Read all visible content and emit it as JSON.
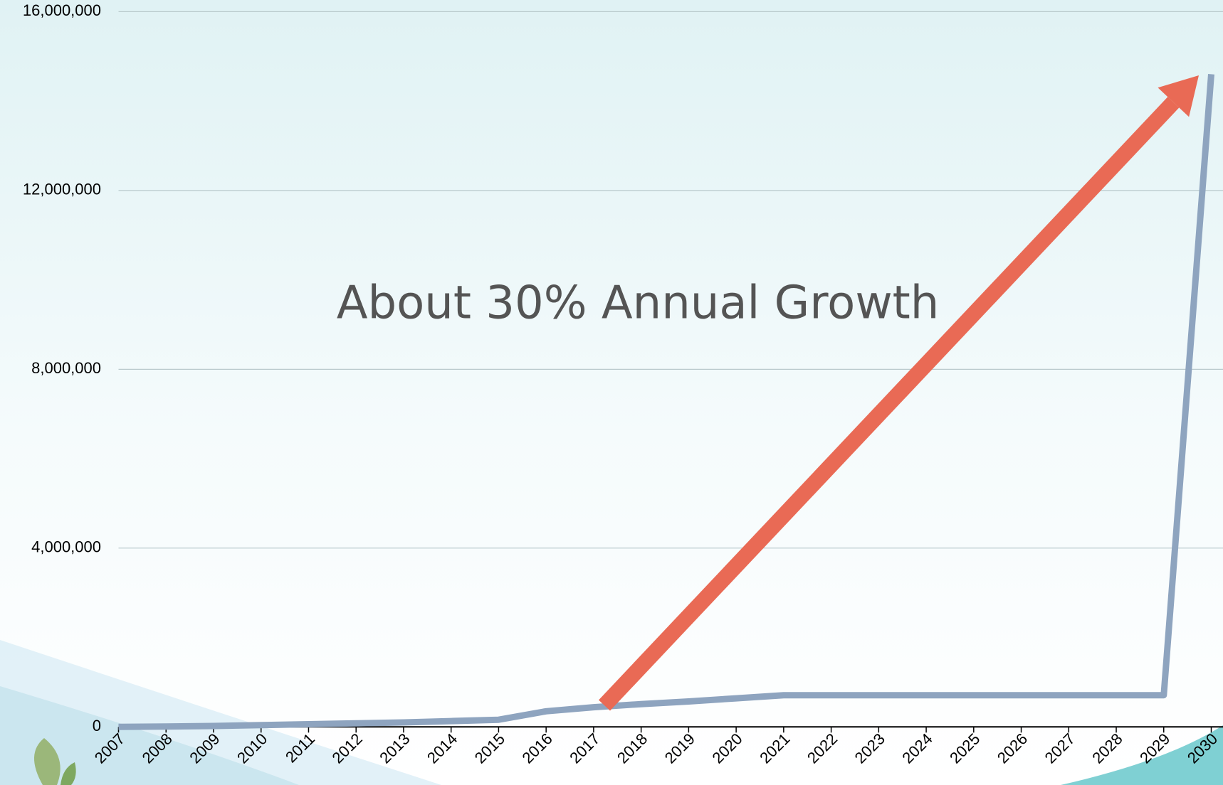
{
  "chart_data": {
    "type": "line",
    "annotation": "About 30% Annual Growth",
    "categories": [
      "2007",
      "2008",
      "2009",
      "2010",
      "2011",
      "2012",
      "2013",
      "2014",
      "2015",
      "2016",
      "2017",
      "2018",
      "2019",
      "2020",
      "2021",
      "2022",
      "2023",
      "2024",
      "2025",
      "2026",
      "2027",
      "2028",
      "2029",
      "2030"
    ],
    "values": [
      0,
      10000,
      20000,
      40000,
      60000,
      80000,
      100000,
      130000,
      160000,
      350000,
      440000,
      510000,
      570000,
      640000,
      710000,
      710000,
      710000,
      710000,
      710000,
      710000,
      710000,
      710000,
      710000,
      14600000
    ],
    "color": "#8ea4bf",
    "ylim": [
      0,
      16000000
    ],
    "yticks": [
      0,
      {
        "value": 4000000,
        "label": "4,000,000"
      },
      {
        "value": 8000000,
        "label": "8,000,000"
      },
      {
        "value": 12000000,
        "label": "12,000,000"
      },
      {
        "value": 16000000,
        "label": "16,000,000"
      }
    ],
    "grid": true
  }
}
